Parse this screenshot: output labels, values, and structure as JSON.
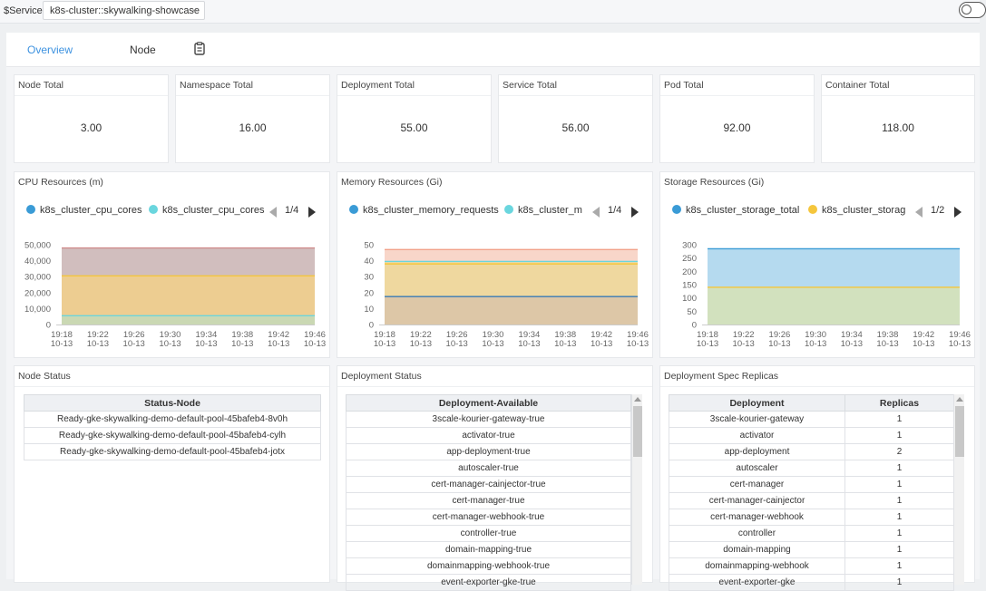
{
  "topbar": {
    "service_label": "$Service",
    "service_value": "k8s-cluster::skywalking-showcase",
    "toggle_on": false
  },
  "tabs": [
    {
      "label": "Overview",
      "active": true
    },
    {
      "label": "Node",
      "active": false
    }
  ],
  "stats": [
    {
      "title": "Node Total",
      "value": "3.00"
    },
    {
      "title": "Namespace Total",
      "value": "16.00"
    },
    {
      "title": "Deployment Total",
      "value": "55.00"
    },
    {
      "title": "Service Total",
      "value": "56.00"
    },
    {
      "title": "Pod Total",
      "value": "92.00"
    },
    {
      "title": "Container Total",
      "value": "118.00"
    }
  ],
  "charts": [
    {
      "title": "CPU Resources (m)",
      "legend": [
        "k8s_cluster_cpu_cores",
        "k8s_cluster_cpu_cores"
      ],
      "legend_colors": [
        "#3a9bd6",
        "#6ad6de"
      ],
      "pager": "1/4"
    },
    {
      "title": "Memory Resources (Gi)",
      "legend": [
        "k8s_cluster_memory_requests",
        "k8s_cluster_m"
      ],
      "legend_colors": [
        "#3a9bd6",
        "#6ad6de"
      ],
      "pager": "1/4"
    },
    {
      "title": "Storage Resources (Gi)",
      "legend": [
        "k8s_cluster_storage_total",
        "k8s_cluster_storag"
      ],
      "legend_colors": [
        "#3a9bd6",
        "#f5c63c"
      ],
      "pager": "1/2"
    }
  ],
  "chart_data": [
    {
      "type": "area",
      "title": "CPU Resources (m)",
      "x": [
        "19:18\n10-13",
        "19:22\n10-13",
        "19:26\n10-13",
        "19:30\n10-13",
        "19:34\n10-13",
        "19:38\n10-13",
        "19:42\n10-13",
        "19:46\n10-13"
      ],
      "y_ticks": [
        "0",
        "10,000",
        "20,000",
        "30,000",
        "40,000",
        "50,000"
      ],
      "ylim": [
        0,
        50000
      ],
      "series": [
        {
          "name": "k8s_cluster_cpu_cores",
          "color": "#c9b3b3",
          "stroke": "#d08c8c",
          "value": 48000
        },
        {
          "name": "",
          "color": "#f2d08a",
          "stroke": "#f5c63c",
          "value": 30500
        },
        {
          "name": "k8s_cluster_cpu_cores",
          "color": "#c3d9b8",
          "stroke": "#6ad6de",
          "value": 5500
        }
      ]
    },
    {
      "type": "area",
      "title": "Memory Resources (Gi)",
      "x": [
        "19:18\n10-13",
        "19:22\n10-13",
        "19:26\n10-13",
        "19:30\n10-13",
        "19:34\n10-13",
        "19:38\n10-13",
        "19:42\n10-13",
        "19:46\n10-13"
      ],
      "y_ticks": [
        "0",
        "10",
        "20",
        "30",
        "40",
        "50"
      ],
      "ylim": [
        0,
        50
      ],
      "series": [
        {
          "name": "",
          "color": "#f7cfc0",
          "stroke": "#f2a28a",
          "value": 47
        },
        {
          "name": "k8s_cluster_m",
          "color": "#f0dba0",
          "stroke": "#6ad6de",
          "value": 39.5
        },
        {
          "name": "",
          "color": "#efd79e",
          "stroke": "#f5c63c",
          "value": 38
        },
        {
          "name": "k8s_cluster_memory_requests",
          "color": "#d9c4a8",
          "stroke": "#3a7bb6",
          "value": 17.5
        }
      ]
    },
    {
      "type": "area",
      "title": "Storage Resources (Gi)",
      "x": [
        "19:18\n10-13",
        "19:22\n10-13",
        "19:26\n10-13",
        "19:30\n10-13",
        "19:34\n10-13",
        "19:38\n10-13",
        "19:42\n10-13",
        "19:46\n10-13"
      ],
      "y_ticks": [
        "0",
        "50",
        "100",
        "150",
        "200",
        "250",
        "300"
      ],
      "ylim": [
        0,
        300
      ],
      "series": [
        {
          "name": "k8s_cluster_storage_total",
          "color": "#a8d3ec",
          "stroke": "#3a9bd6",
          "value": 285
        },
        {
          "name": "k8s_cluster_storag",
          "color": "#d7e2b5",
          "stroke": "#f5c63c",
          "value": 140
        }
      ]
    }
  ],
  "node_status": {
    "title": "Node Status",
    "header": "Status-Node",
    "rows": [
      "Ready-gke-skywalking-demo-default-pool-45bafeb4-8v0h",
      "Ready-gke-skywalking-demo-default-pool-45bafeb4-cylh",
      "Ready-gke-skywalking-demo-default-pool-45bafeb4-jotx"
    ]
  },
  "deployment_status": {
    "title": "Deployment Status",
    "header": "Deployment-Available",
    "rows": [
      "3scale-kourier-gateway-true",
      "activator-true",
      "app-deployment-true",
      "autoscaler-true",
      "cert-manager-cainjector-true",
      "cert-manager-true",
      "cert-manager-webhook-true",
      "controller-true",
      "domain-mapping-true",
      "domainmapping-webhook-true",
      "event-exporter-gke-true"
    ]
  },
  "deployment_replicas": {
    "title": "Deployment Spec Replicas",
    "headers": [
      "Deployment",
      "Replicas"
    ],
    "rows": [
      [
        "3scale-kourier-gateway",
        "1"
      ],
      [
        "activator",
        "1"
      ],
      [
        "app-deployment",
        "2"
      ],
      [
        "autoscaler",
        "1"
      ],
      [
        "cert-manager",
        "1"
      ],
      [
        "cert-manager-cainjector",
        "1"
      ],
      [
        "cert-manager-webhook",
        "1"
      ],
      [
        "controller",
        "1"
      ],
      [
        "domain-mapping",
        "1"
      ],
      [
        "domainmapping-webhook",
        "1"
      ],
      [
        "event-exporter-gke",
        "1"
      ]
    ]
  }
}
